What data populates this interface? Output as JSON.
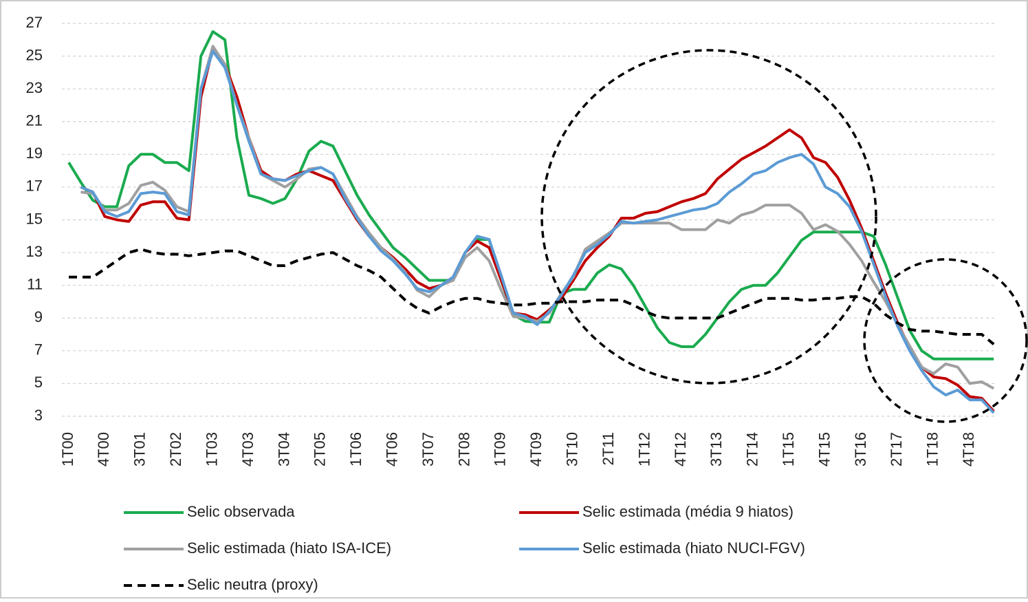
{
  "chart_data": {
    "type": "line",
    "categories": [
      "1T00",
      null,
      null,
      "4T00",
      null,
      null,
      "3T01",
      null,
      null,
      "2T02",
      null,
      null,
      "1T03",
      null,
      null,
      "4T03",
      null,
      null,
      "3T04",
      null,
      null,
      "2T05",
      null,
      null,
      "1T06",
      null,
      null,
      "4T06",
      null,
      null,
      "3T07",
      null,
      null,
      "2T08",
      null,
      null,
      "1T09",
      null,
      null,
      "4T09",
      null,
      null,
      "3T10",
      null,
      null,
      "2T11",
      null,
      null,
      "1T12",
      null,
      null,
      "4T12",
      null,
      null,
      "3T13",
      null,
      null,
      "2T14",
      null,
      null,
      "1T15",
      null,
      null,
      "4T15",
      null,
      null,
      "3T16",
      null,
      null,
      "2T17",
      null,
      null,
      "1T18",
      null,
      null,
      "4T18",
      null,
      null
    ],
    "series": [
      {
        "name": "Selic observada",
        "color": "#1aab4f",
        "values": [
          18.5,
          17.3,
          16.2,
          15.8,
          15.8,
          18.3,
          19.0,
          19.0,
          18.5,
          18.5,
          18.0,
          25.0,
          26.5,
          26.0,
          20.0,
          16.5,
          16.3,
          16.0,
          16.3,
          17.5,
          19.2,
          19.8,
          19.5,
          18.0,
          16.5,
          15.3,
          14.3,
          13.3,
          12.7,
          12.0,
          11.3,
          11.3,
          11.3,
          13.0,
          13.8,
          13.8,
          11.3,
          9.2,
          8.8,
          8.75,
          8.75,
          10.5,
          10.75,
          10.75,
          11.75,
          12.25,
          12.0,
          11.0,
          9.7,
          8.4,
          7.5,
          7.25,
          7.25,
          8.0,
          9.0,
          10.0,
          10.75,
          11.0,
          11.0,
          11.75,
          12.75,
          13.75,
          14.25,
          14.25,
          14.25,
          14.25,
          14.25,
          14.0,
          12.25,
          10.25,
          8.25,
          7.0,
          6.5,
          6.5,
          6.5,
          6.5,
          6.5,
          6.5
        ]
      },
      {
        "name": "Selic estimada (média 9 hiatos)",
        "color": "#c00000",
        "values": [
          null,
          17.0,
          16.7,
          15.2,
          15.0,
          14.9,
          15.9,
          16.1,
          16.1,
          15.1,
          15.0,
          22.5,
          25.5,
          24.5,
          22.5,
          20.0,
          18.0,
          17.5,
          17.4,
          17.8,
          18.0,
          17.7,
          17.4,
          16.2,
          15.0,
          14.0,
          13.3,
          12.7,
          12.0,
          11.2,
          10.8,
          11.0,
          11.5,
          13.0,
          13.7,
          13.3,
          11.3,
          9.3,
          9.2,
          8.9,
          9.5,
          10.2,
          11.3,
          12.5,
          13.3,
          14.0,
          15.1,
          15.1,
          15.4,
          15.5,
          15.8,
          16.1,
          16.3,
          16.6,
          17.5,
          18.1,
          18.7,
          19.1,
          19.5,
          20.0,
          20.5,
          20.0,
          18.8,
          18.5,
          17.6,
          16.2,
          14.5,
          12.5,
          10.5,
          8.7,
          7.2,
          6.0,
          5.4,
          5.3,
          4.9,
          4.2,
          4.1,
          3.3
        ]
      },
      {
        "name": "Selic estimada (hiato ISA-ICE)",
        "color": "#a0a0a0",
        "values": [
          null,
          16.7,
          16.6,
          15.6,
          15.6,
          16.0,
          17.1,
          17.3,
          16.8,
          15.8,
          15.5,
          23.0,
          25.6,
          24.5,
          22.0,
          20.0,
          17.8,
          17.4,
          17.0,
          17.5,
          18.1,
          18.2,
          17.8,
          16.5,
          15.2,
          14.2,
          13.3,
          12.6,
          11.8,
          10.7,
          10.3,
          11.0,
          11.3,
          12.7,
          13.3,
          12.5,
          10.7,
          9.1,
          9.0,
          8.8,
          9.3,
          10.5,
          11.5,
          13.2,
          13.7,
          14.2,
          14.8,
          14.8,
          14.8,
          14.8,
          14.8,
          14.4,
          14.4,
          14.4,
          15.0,
          14.8,
          15.3,
          15.5,
          15.9,
          15.9,
          15.9,
          15.4,
          14.4,
          14.7,
          14.3,
          13.5,
          12.5,
          11.2,
          10.0,
          8.6,
          7.3,
          6.0,
          5.6,
          6.2,
          6.0,
          5.0,
          5.1,
          4.7
        ]
      },
      {
        "name": "Selic estimada (hiato NUCI-FGV)",
        "color": "#5b9bd5",
        "values": [
          null,
          17.0,
          16.7,
          15.5,
          15.2,
          15.5,
          16.6,
          16.7,
          16.6,
          15.5,
          15.3,
          23.0,
          25.3,
          24.3,
          22.0,
          19.8,
          17.8,
          17.5,
          17.4,
          17.7,
          18.0,
          18.2,
          17.8,
          16.3,
          15.1,
          14.0,
          13.1,
          12.5,
          11.7,
          10.8,
          10.6,
          11.0,
          11.5,
          13.0,
          14.0,
          13.8,
          11.6,
          9.3,
          9.1,
          8.6,
          9.4,
          10.4,
          11.6,
          13.0,
          13.5,
          14.1,
          14.9,
          14.8,
          14.9,
          15.0,
          15.2,
          15.4,
          15.6,
          15.7,
          16.0,
          16.7,
          17.2,
          17.8,
          18.0,
          18.5,
          18.8,
          19.0,
          18.4,
          17.0,
          16.6,
          15.8,
          14.3,
          12.3,
          10.3,
          8.5,
          7.0,
          5.8,
          4.8,
          4.3,
          4.6,
          4.0,
          4.0,
          3.2
        ]
      },
      {
        "name": "Selic neutra (proxy)",
        "color": "#000000",
        "line_style": "dashed",
        "values": [
          11.5,
          11.5,
          11.5,
          12.0,
          12.5,
          13.0,
          13.2,
          13.0,
          12.9,
          12.9,
          12.8,
          12.9,
          13.0,
          13.1,
          13.1,
          12.8,
          12.5,
          12.2,
          12.2,
          12.5,
          12.7,
          12.9,
          13.0,
          12.6,
          12.2,
          11.9,
          11.5,
          10.8,
          10.1,
          9.6,
          9.3,
          9.7,
          10.0,
          10.2,
          10.2,
          10.0,
          9.9,
          9.8,
          9.8,
          9.9,
          9.9,
          10.0,
          10.0,
          10.0,
          10.1,
          10.1,
          10.1,
          9.8,
          9.4,
          9.1,
          9.0,
          9.0,
          9.0,
          9.0,
          9.0,
          9.3,
          9.6,
          9.9,
          10.2,
          10.2,
          10.2,
          10.1,
          10.1,
          10.2,
          10.2,
          10.3,
          10.3,
          9.9,
          9.2,
          8.7,
          8.3,
          8.2,
          8.2,
          8.1,
          8.0,
          8.0,
          8.0,
          7.4
        ]
      }
    ],
    "ylim": [
      3,
      27
    ],
    "yticks": [
      3,
      5,
      7,
      9,
      11,
      13,
      15,
      17,
      19,
      21,
      23,
      25,
      27
    ],
    "grid": true
  }
}
